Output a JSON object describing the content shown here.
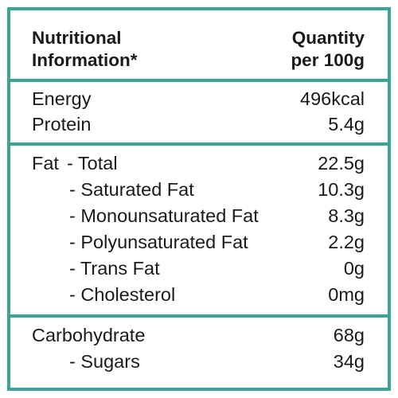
{
  "header": {
    "left_line1": "Nutritional",
    "left_line2": "Information*",
    "right_line1": "Quantity",
    "right_line2": "per 100g"
  },
  "energy_section": [
    {
      "label": "Energy",
      "value": "496kcal"
    },
    {
      "label": "Protein",
      "value": "5.4g"
    }
  ],
  "fat_section": {
    "prefix": "Fat",
    "rows": [
      {
        "label": "- Total",
        "value": "22.5g"
      },
      {
        "label": "- Saturated Fat",
        "value": "10.3g"
      },
      {
        "label": "- Monounsaturated Fat",
        "value": "8.3g"
      },
      {
        "label": "- Polyunsaturated Fat",
        "value": "2.2g"
      },
      {
        "label": "- Trans Fat",
        "value": "0g"
      },
      {
        "label": "- Cholesterol",
        "value": "0mg"
      }
    ]
  },
  "carb_section": [
    {
      "label": "Carbohydrate",
      "value": "68g"
    },
    {
      "label": "- Sugars",
      "value": "34g"
    }
  ],
  "colors": {
    "border": "#3aa597",
    "text": "#1a1a1a"
  }
}
